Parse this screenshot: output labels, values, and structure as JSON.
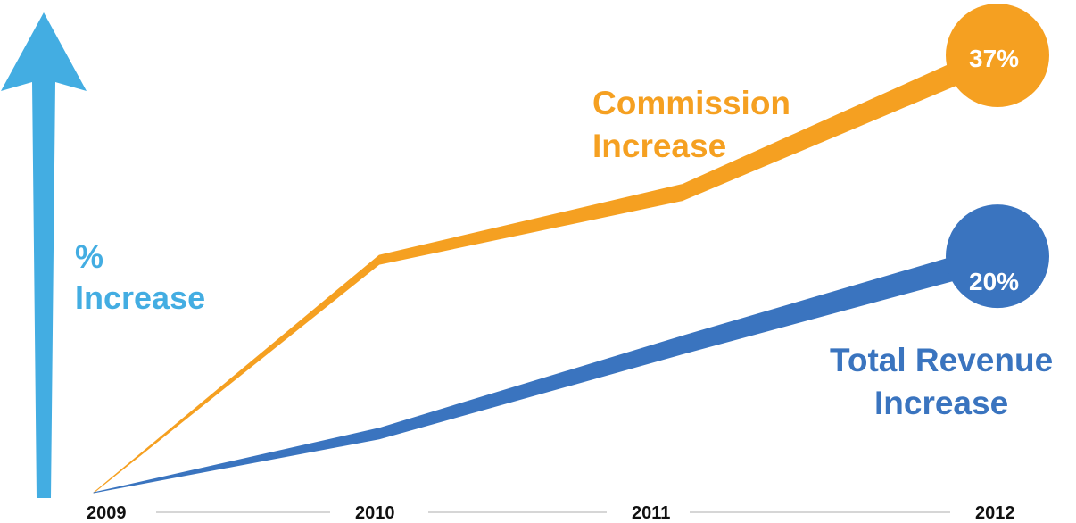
{
  "chart_data": {
    "type": "area",
    "categories": [
      "2009",
      "2010",
      "2011",
      "2012"
    ],
    "ylabel": "% Increase",
    "ylabel_lines": [
      "%",
      "Increase"
    ],
    "ylim": [
      0,
      37
    ],
    "grid": false,
    "legend": "inline labels next to series",
    "series": [
      {
        "name": "Commission Increase",
        "name_lines": [
          "Commission",
          "Increase"
        ],
        "color": "#f5a021",
        "values": [
          0,
          19.7,
          25.4,
          37
        ],
        "end_label": "37%"
      },
      {
        "name": "Total Revenue Increase",
        "name_lines": [
          "Total Revenue",
          "Increase"
        ],
        "color": "#3a74bf",
        "values": [
          0,
          5,
          12.5,
          20
        ],
        "end_label": "20%"
      }
    ]
  },
  "colors": {
    "axis_arrow": "#43ade2",
    "axis_line": "#c8c8c8",
    "tick_text": "#111111"
  }
}
